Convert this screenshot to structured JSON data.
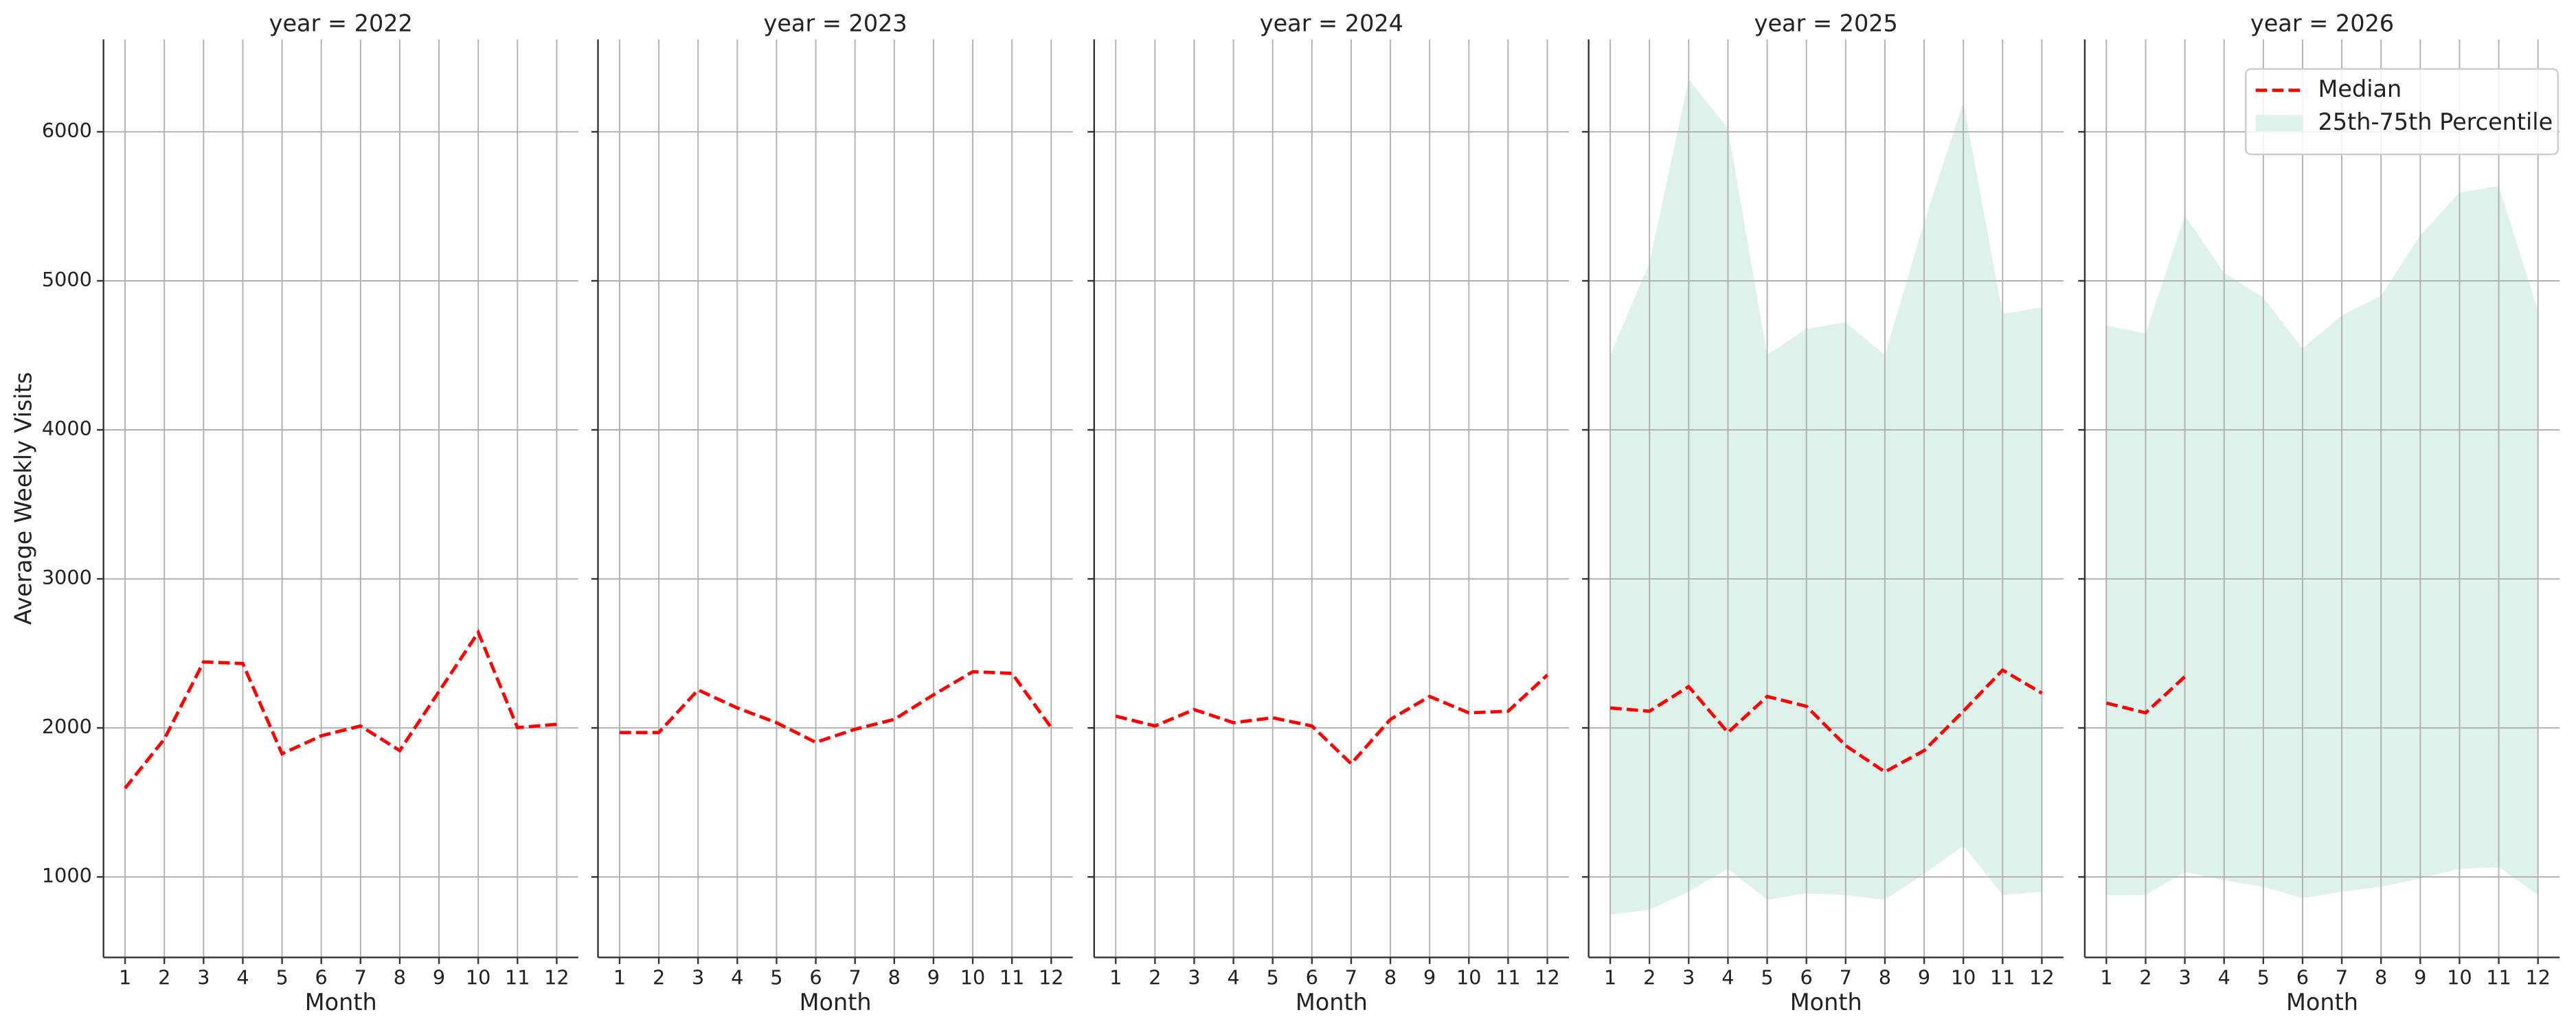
{
  "chart_data": [
    {
      "type": "line",
      "title": "year = 2022",
      "xlabel": "Month",
      "ylabel": "Average Weekly Visits",
      "x": [
        1,
        2,
        3,
        4,
        5,
        6,
        7,
        8,
        9,
        10,
        11,
        12
      ],
      "xlim": [
        0.45,
        12.55
      ],
      "xticks": [
        1,
        2,
        3,
        4,
        5,
        6,
        7,
        8,
        9,
        10,
        11,
        12
      ],
      "ylim": [
        460,
        6620
      ],
      "yticks": [
        1000,
        2000,
        3000,
        4000,
        5000,
        6000
      ],
      "grid": true,
      "series": [
        {
          "color": "#ff0000",
          "values": [
            1595,
            1925,
            2443,
            2432,
            1826,
            1947,
            2013,
            1848,
            2244,
            2641,
            2002,
            2024
          ]
        }
      ]
    },
    {
      "type": "line",
      "title": "year = 2023",
      "xlabel": "Month",
      "x": [
        1,
        2,
        3,
        4,
        5,
        6,
        7,
        8,
        9,
        10,
        11,
        12
      ],
      "xlim": [
        0.45,
        12.55
      ],
      "xticks": [
        1,
        2,
        3,
        4,
        5,
        6,
        7,
        8,
        9,
        10,
        11,
        12
      ],
      "ylim": [
        460,
        6620
      ],
      "yticks": [
        1000,
        2000,
        3000,
        4000,
        5000,
        6000
      ],
      "grid": true,
      "series": [
        {
          "color": "#ff0000",
          "values": [
            1969,
            1969,
            2255,
            2134,
            2035,
            1903,
            1991,
            2057,
            2222,
            2377,
            2366,
            2002
          ]
        }
      ]
    },
    {
      "type": "line",
      "title": "year = 2024",
      "xlabel": "Month",
      "x": [
        1,
        2,
        3,
        4,
        5,
        6,
        7,
        8,
        9,
        10,
        11,
        12
      ],
      "xlim": [
        0.45,
        12.55
      ],
      "xticks": [
        1,
        2,
        3,
        4,
        5,
        6,
        7,
        8,
        9,
        10,
        11,
        12
      ],
      "ylim": [
        460,
        6620
      ],
      "yticks": [
        1000,
        2000,
        3000,
        4000,
        5000,
        6000
      ],
      "grid": true,
      "series": [
        {
          "color": "#ff0000",
          "values": [
            2079,
            2013,
            2123,
            2035,
            2068,
            2013,
            1760,
            2057,
            2211,
            2101,
            2112,
            2355
          ]
        }
      ]
    },
    {
      "type": "line",
      "title": "year = 2025",
      "xlabel": "Month",
      "x": [
        1,
        2,
        3,
        4,
        5,
        6,
        7,
        8,
        9,
        10,
        11,
        12
      ],
      "xlim": [
        0.45,
        12.55
      ],
      "xticks": [
        1,
        2,
        3,
        4,
        5,
        6,
        7,
        8,
        9,
        10,
        11,
        12
      ],
      "ylim": [
        460,
        6620
      ],
      "yticks": [
        1000,
        2000,
        3000,
        4000,
        5000,
        6000
      ],
      "grid": true,
      "series": [
        {
          "color": "#ff0000",
          "values": [
            2134,
            2112,
            2277,
            1969,
            2211,
            2145,
            1881,
            1705,
            1848,
            2112,
            2388,
            2233
          ]
        },
        {
          "type": "band",
          "color": "#dff1eb",
          "lower": [
            747,
            780,
            901,
            1055,
            846,
            890,
            879,
            846,
            1022,
            1209,
            879,
            901
          ],
          "upper": [
            4502,
            5119,
            6352,
            6022,
            4502,
            4678,
            4722,
            4502,
            5394,
            6198,
            4778,
            4822
          ]
        }
      ]
    },
    {
      "type": "line",
      "title": "year = 2026",
      "xlabel": "Month",
      "x": [
        1,
        2,
        3,
        4,
        5,
        6,
        7,
        8,
        9,
        10,
        11,
        12
      ],
      "xlim": [
        0.45,
        12.55
      ],
      "xticks": [
        1,
        2,
        3,
        4,
        5,
        6,
        7,
        8,
        9,
        10,
        11,
        12
      ],
      "ylim": [
        460,
        6620
      ],
      "yticks": [
        1000,
        2000,
        3000,
        4000,
        5000,
        6000
      ],
      "grid": true,
      "legend": "upper right",
      "series": [
        {
          "name": "Median",
          "color": "#ff0000",
          "values": [
            2167,
            2101,
            2344,
            null,
            null,
            null,
            null,
            null,
            null,
            null,
            null,
            null
          ]
        },
        {
          "name": "25th-75th Percentile",
          "type": "band",
          "color": "#dff1eb",
          "lower": [
            879,
            879,
            1033,
            978,
            934,
            857,
            901,
            934,
            989,
            1055,
            1066,
            879
          ],
          "upper": [
            4700,
            4645,
            5438,
            5053,
            4888,
            4546,
            4767,
            4899,
            5306,
            5592,
            5636,
            4800
          ]
        }
      ]
    }
  ]
}
